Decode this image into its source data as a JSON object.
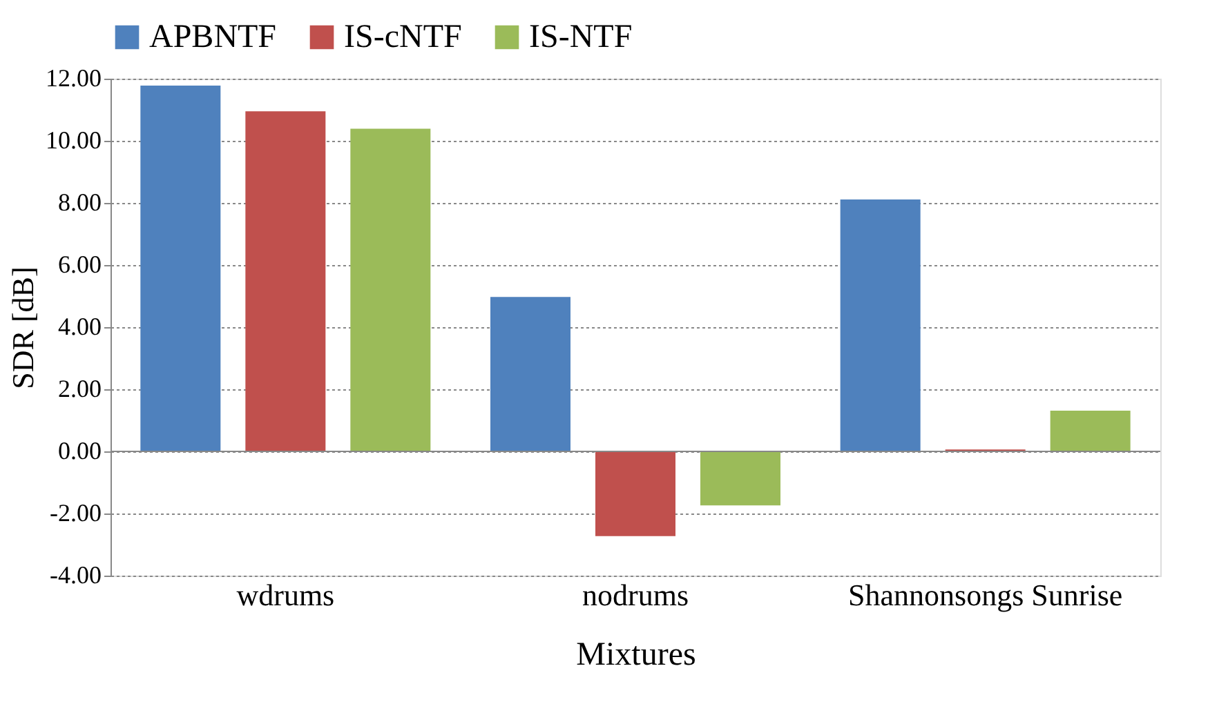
{
  "chart_data": {
    "type": "bar",
    "xlabel": "Mixtures",
    "ylabel": "SDR [dB]",
    "categories": [
      "wdrums",
      "nodrums",
      "Shannonsongs Sunrise"
    ],
    "series": [
      {
        "name": "APBNTF",
        "color": "#4f81bd",
        "values": [
          11.78,
          4.97,
          8.11
        ]
      },
      {
        "name": "IS-cNTF",
        "color": "#c0504d",
        "values": [
          10.95,
          -2.73,
          0.06
        ]
      },
      {
        "name": "IS-NTF",
        "color": "#9bbb59",
        "values": [
          10.39,
          -1.74,
          1.31
        ]
      }
    ],
    "ylim": [
      -4,
      12
    ],
    "yticks": [
      {
        "value": -4,
        "label": "-4.00"
      },
      {
        "value": -2,
        "label": "-2.00"
      },
      {
        "value": 0,
        "label": "0.00"
      },
      {
        "value": 2,
        "label": "2.00"
      },
      {
        "value": 4,
        "label": "4.00"
      },
      {
        "value": 6,
        "label": "6.00"
      },
      {
        "value": 8,
        "label": "8.00"
      },
      {
        "value": 10,
        "label": "10.00"
      },
      {
        "value": 12,
        "label": "12.00"
      }
    ],
    "grid": "y",
    "legend": "top"
  }
}
